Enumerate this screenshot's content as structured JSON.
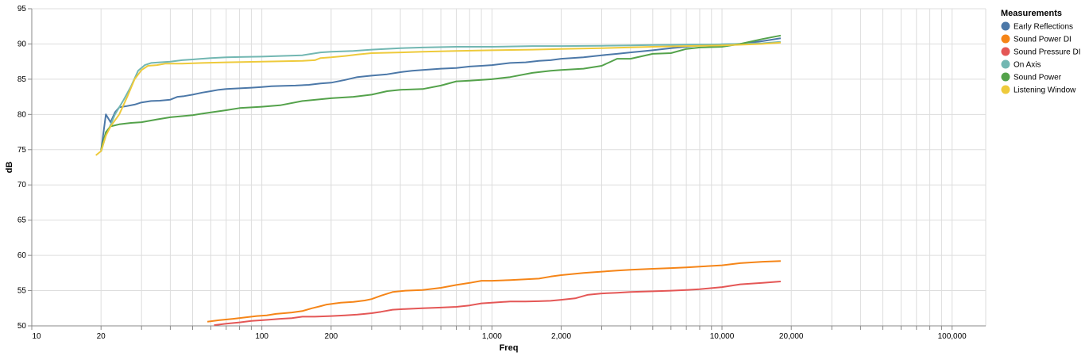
{
  "chart_data": {
    "type": "line",
    "title": "",
    "xlabel": "Freq",
    "ylabel": "dB",
    "xscale": "log",
    "xlim": [
      10,
      140000
    ],
    "ylim": [
      50,
      95
    ],
    "x_ticks_labeled": [
      "10",
      "20",
      "100",
      "200",
      "1,000",
      "2,000",
      "10,000",
      "20,000",
      "100,000"
    ],
    "y_ticks": [
      "50",
      "55",
      "60",
      "65",
      "70",
      "75",
      "80",
      "85",
      "90",
      "95"
    ],
    "grid": true,
    "legend": {
      "title": "Measurements",
      "position": "right"
    },
    "series": [
      {
        "name": "Early Reflections",
        "color": "#4c78a8",
        "points": [
          [
            20,
            74.8
          ],
          [
            21,
            80
          ],
          [
            22,
            78.9
          ],
          [
            23,
            80.3
          ],
          [
            24,
            81
          ],
          [
            26,
            81.2
          ],
          [
            28,
            81.4
          ],
          [
            30,
            81.7
          ],
          [
            33,
            81.9
          ],
          [
            36,
            81.95
          ],
          [
            40,
            82.1
          ],
          [
            43,
            82.5
          ],
          [
            46,
            82.6
          ],
          [
            50,
            82.8
          ],
          [
            55,
            83.1
          ],
          [
            60,
            83.3
          ],
          [
            65,
            83.5
          ],
          [
            70,
            83.6
          ],
          [
            80,
            83.7
          ],
          [
            90,
            83.8
          ],
          [
            100,
            83.9
          ],
          [
            110,
            84.0
          ],
          [
            125,
            84.05
          ],
          [
            140,
            84.1
          ],
          [
            160,
            84.2
          ],
          [
            180,
            84.4
          ],
          [
            200,
            84.5
          ],
          [
            230,
            84.9
          ],
          [
            260,
            85.3
          ],
          [
            300,
            85.5
          ],
          [
            350,
            85.7
          ],
          [
            400,
            86.0
          ],
          [
            450,
            86.2
          ],
          [
            500,
            86.3
          ],
          [
            600,
            86.5
          ],
          [
            700,
            86.6
          ],
          [
            800,
            86.8
          ],
          [
            900,
            86.9
          ],
          [
            1000,
            87.0
          ],
          [
            1200,
            87.3
          ],
          [
            1400,
            87.4
          ],
          [
            1600,
            87.6
          ],
          [
            1800,
            87.7
          ],
          [
            2000,
            87.9
          ],
          [
            2500,
            88.1
          ],
          [
            3000,
            88.4
          ],
          [
            3500,
            88.6
          ],
          [
            4000,
            88.8
          ],
          [
            5000,
            89.1
          ],
          [
            6000,
            89.4
          ],
          [
            7000,
            89.6
          ],
          [
            8000,
            89.8
          ],
          [
            10000,
            89.95
          ],
          [
            12000,
            90.0
          ],
          [
            15000,
            90.4
          ],
          [
            18000,
            90.8
          ]
        ]
      },
      {
        "name": "Sound Power DI",
        "color": "#f58518",
        "points": [
          [
            58,
            50.6
          ],
          [
            65,
            50.8
          ],
          [
            75,
            51.0
          ],
          [
            85,
            51.2
          ],
          [
            95,
            51.4
          ],
          [
            105,
            51.5
          ],
          [
            115,
            51.7
          ],
          [
            125,
            51.8
          ],
          [
            135,
            51.9
          ],
          [
            150,
            52.1
          ],
          [
            165,
            52.5
          ],
          [
            180,
            52.8
          ],
          [
            190,
            53.0
          ],
          [
            200,
            53.1
          ],
          [
            220,
            53.3
          ],
          [
            250,
            53.4
          ],
          [
            280,
            53.6
          ],
          [
            300,
            53.8
          ],
          [
            330,
            54.3
          ],
          [
            370,
            54.8
          ],
          [
            420,
            55.0
          ],
          [
            500,
            55.1
          ],
          [
            600,
            55.4
          ],
          [
            700,
            55.8
          ],
          [
            800,
            56.1
          ],
          [
            900,
            56.4
          ],
          [
            1000,
            56.4
          ],
          [
            1200,
            56.5
          ],
          [
            1400,
            56.6
          ],
          [
            1600,
            56.7
          ],
          [
            1800,
            57.0
          ],
          [
            2000,
            57.2
          ],
          [
            2500,
            57.5
          ],
          [
            3000,
            57.7
          ],
          [
            3500,
            57.85
          ],
          [
            4000,
            57.95
          ],
          [
            5000,
            58.1
          ],
          [
            6000,
            58.2
          ],
          [
            7000,
            58.3
          ],
          [
            8000,
            58.4
          ],
          [
            9000,
            58.5
          ],
          [
            10000,
            58.6
          ],
          [
            12000,
            58.9
          ],
          [
            15000,
            59.1
          ],
          [
            18000,
            59.2
          ]
        ]
      },
      {
        "name": "Sound Pressure DI",
        "color": "#e45756",
        "points": [
          [
            62,
            50.1
          ],
          [
            70,
            50.3
          ],
          [
            80,
            50.5
          ],
          [
            90,
            50.7
          ],
          [
            100,
            50.8
          ],
          [
            110,
            50.9
          ],
          [
            120,
            51.0
          ],
          [
            135,
            51.1
          ],
          [
            150,
            51.3
          ],
          [
            170,
            51.3
          ],
          [
            200,
            51.4
          ],
          [
            230,
            51.5
          ],
          [
            260,
            51.6
          ],
          [
            280,
            51.7
          ],
          [
            300,
            51.8
          ],
          [
            330,
            52.0
          ],
          [
            370,
            52.3
          ],
          [
            420,
            52.4
          ],
          [
            500,
            52.5
          ],
          [
            600,
            52.6
          ],
          [
            700,
            52.7
          ],
          [
            800,
            52.9
          ],
          [
            900,
            53.2
          ],
          [
            1000,
            53.3
          ],
          [
            1200,
            53.45
          ],
          [
            1400,
            53.45
          ],
          [
            1600,
            53.5
          ],
          [
            1800,
            53.55
          ],
          [
            2000,
            53.7
          ],
          [
            2300,
            53.9
          ],
          [
            2600,
            54.4
          ],
          [
            3000,
            54.6
          ],
          [
            3500,
            54.7
          ],
          [
            4000,
            54.8
          ],
          [
            5000,
            54.9
          ],
          [
            6000,
            55.0
          ],
          [
            7000,
            55.1
          ],
          [
            8000,
            55.2
          ],
          [
            10000,
            55.5
          ],
          [
            12000,
            55.9
          ],
          [
            15000,
            56.1
          ],
          [
            18000,
            56.3
          ]
        ]
      },
      {
        "name": "On Axis",
        "color": "#72b7b2",
        "points": [
          [
            20,
            74.7
          ],
          [
            21,
            77
          ],
          [
            22,
            78.5
          ],
          [
            23,
            80
          ],
          [
            25,
            82
          ],
          [
            27,
            84
          ],
          [
            29,
            86.2
          ],
          [
            31,
            87
          ],
          [
            33,
            87.3
          ],
          [
            36,
            87.4
          ],
          [
            40,
            87.5
          ],
          [
            45,
            87.7
          ],
          [
            50,
            87.8
          ],
          [
            60,
            88.0
          ],
          [
            70,
            88.1
          ],
          [
            80,
            88.15
          ],
          [
            100,
            88.2
          ],
          [
            120,
            88.3
          ],
          [
            150,
            88.4
          ],
          [
            180,
            88.8
          ],
          [
            200,
            88.9
          ],
          [
            250,
            89.0
          ],
          [
            300,
            89.2
          ],
          [
            400,
            89.4
          ],
          [
            500,
            89.5
          ],
          [
            700,
            89.6
          ],
          [
            1000,
            89.6
          ],
          [
            1500,
            89.7
          ],
          [
            2000,
            89.7
          ],
          [
            3000,
            89.75
          ],
          [
            4000,
            89.8
          ],
          [
            5000,
            89.85
          ],
          [
            7000,
            89.9
          ],
          [
            10000,
            89.95
          ],
          [
            15000,
            90.1
          ],
          [
            18000,
            90.3
          ]
        ]
      },
      {
        "name": "Sound Power",
        "color": "#54a24b",
        "points": [
          [
            20,
            75.0
          ],
          [
            21,
            77.5
          ],
          [
            22,
            78.3
          ],
          [
            24,
            78.6
          ],
          [
            27,
            78.8
          ],
          [
            30,
            78.9
          ],
          [
            35,
            79.3
          ],
          [
            40,
            79.6
          ],
          [
            50,
            79.9
          ],
          [
            60,
            80.3
          ],
          [
            70,
            80.6
          ],
          [
            80,
            80.9
          ],
          [
            100,
            81.1
          ],
          [
            120,
            81.3
          ],
          [
            150,
            81.9
          ],
          [
            200,
            82.3
          ],
          [
            250,
            82.5
          ],
          [
            300,
            82.8
          ],
          [
            350,
            83.3
          ],
          [
            400,
            83.5
          ],
          [
            500,
            83.6
          ],
          [
            600,
            84.1
          ],
          [
            700,
            84.7
          ],
          [
            800,
            84.8
          ],
          [
            900,
            84.9
          ],
          [
            1000,
            85.0
          ],
          [
            1200,
            85.3
          ],
          [
            1500,
            85.9
          ],
          [
            1800,
            86.2
          ],
          [
            2000,
            86.3
          ],
          [
            2500,
            86.5
          ],
          [
            3000,
            86.9
          ],
          [
            3500,
            87.9
          ],
          [
            4000,
            87.9
          ],
          [
            5000,
            88.6
          ],
          [
            6000,
            88.7
          ],
          [
            7000,
            89.3
          ],
          [
            8000,
            89.5
          ],
          [
            10000,
            89.6
          ],
          [
            12000,
            90.0
          ],
          [
            15000,
            90.7
          ],
          [
            18000,
            91.2
          ]
        ]
      },
      {
        "name": "Listening Window",
        "color": "#eeca3b",
        "points": [
          [
            19,
            74.2
          ],
          [
            20,
            74.8
          ],
          [
            21,
            77
          ],
          [
            22,
            78.3
          ],
          [
            24,
            80
          ],
          [
            26,
            82.5
          ],
          [
            28,
            85
          ],
          [
            30,
            86.3
          ],
          [
            32,
            86.9
          ],
          [
            35,
            87.0
          ],
          [
            38,
            87.2
          ],
          [
            45,
            87.2
          ],
          [
            55,
            87.3
          ],
          [
            70,
            87.4
          ],
          [
            100,
            87.5
          ],
          [
            150,
            87.6
          ],
          [
            170,
            87.7
          ],
          [
            180,
            88.0
          ],
          [
            200,
            88.1
          ],
          [
            230,
            88.3
          ],
          [
            260,
            88.5
          ],
          [
            300,
            88.7
          ],
          [
            400,
            88.8
          ],
          [
            500,
            88.9
          ],
          [
            700,
            89.0
          ],
          [
            1000,
            89.1
          ],
          [
            1500,
            89.2
          ],
          [
            2000,
            89.3
          ],
          [
            3000,
            89.4
          ],
          [
            5000,
            89.6
          ],
          [
            7000,
            89.7
          ],
          [
            10000,
            89.8
          ],
          [
            15000,
            90.0
          ],
          [
            18000,
            90.2
          ]
        ]
      }
    ]
  }
}
